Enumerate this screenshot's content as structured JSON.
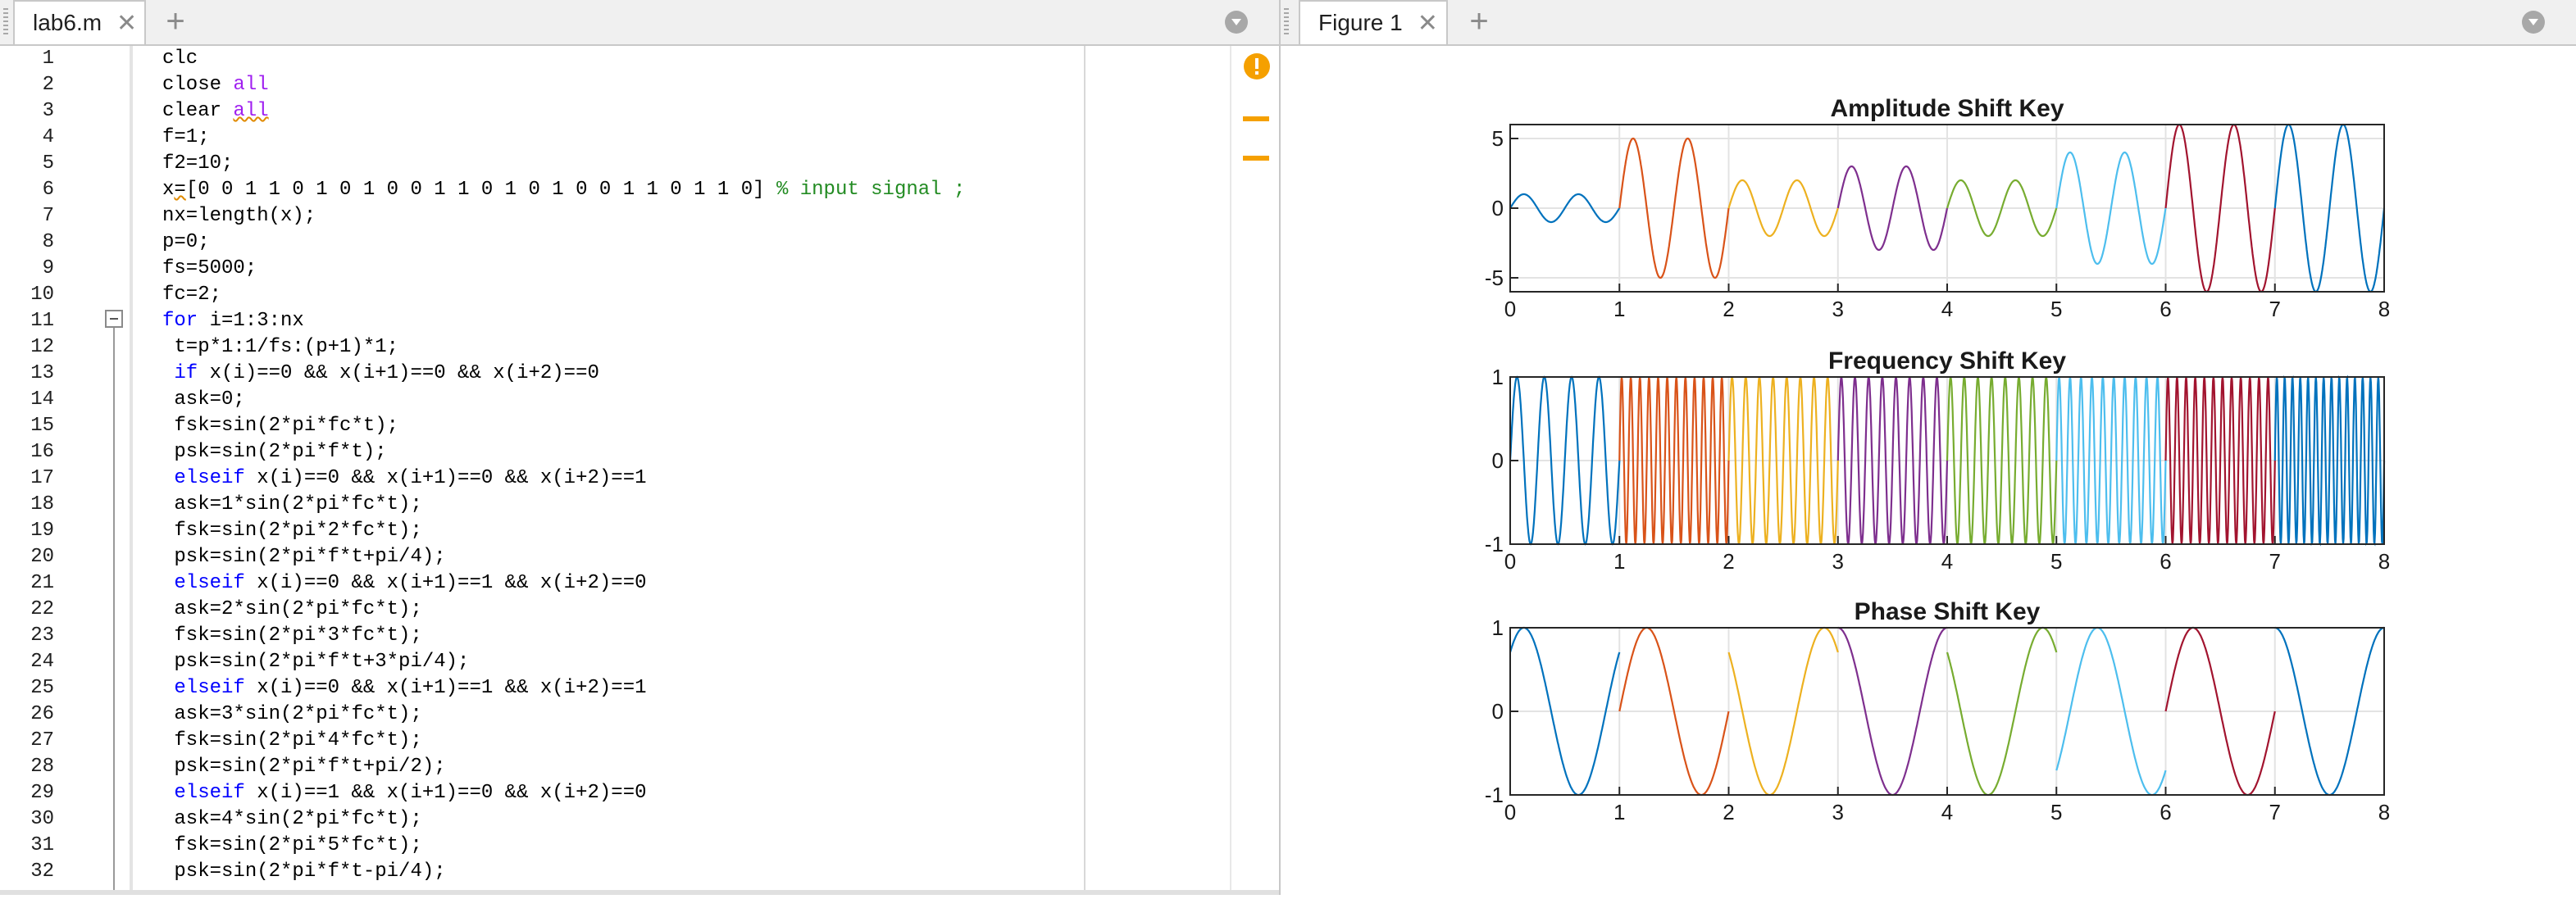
{
  "editor": {
    "tab_label": "lab6.m",
    "close_glyph": "✕",
    "add_glyph": "+",
    "lines": [
      {
        "n": "1",
        "segs": [
          {
            "t": "clc",
            "c": "txt"
          }
        ]
      },
      {
        "n": "2",
        "segs": [
          {
            "t": "close ",
            "c": "txt"
          },
          {
            "t": "all",
            "c": "str"
          }
        ]
      },
      {
        "n": "3",
        "segs": [
          {
            "t": "clear ",
            "c": "txt"
          },
          {
            "t": "all",
            "c": "str squig"
          }
        ]
      },
      {
        "n": "4",
        "segs": [
          {
            "t": "f=1;",
            "c": "txt"
          }
        ]
      },
      {
        "n": "5",
        "segs": [
          {
            "t": "f2=10;",
            "c": "txt"
          }
        ]
      },
      {
        "n": "6",
        "segs": [
          {
            "t": "x",
            "c": "txt"
          },
          {
            "t": "=",
            "c": "txt squig"
          },
          {
            "t": "[0 0 1 1 0 1 0 1 0 0 1 1 0 1 0 1 0 0 1 1 0 1 1 0] ",
            "c": "txt"
          },
          {
            "t": "% input signal ;",
            "c": "cmt"
          }
        ]
      },
      {
        "n": "7",
        "segs": [
          {
            "t": "nx=length(x);",
            "c": "txt"
          }
        ]
      },
      {
        "n": "8",
        "segs": [
          {
            "t": "p=0;",
            "c": "txt"
          }
        ]
      },
      {
        "n": "9",
        "segs": [
          {
            "t": "fs=5000;",
            "c": "txt"
          }
        ]
      },
      {
        "n": "10",
        "segs": [
          {
            "t": "fc=2;",
            "c": "txt"
          }
        ]
      },
      {
        "n": "11",
        "segs": [
          {
            "t": "for ",
            "c": "kw"
          },
          {
            "t": "i=1:3:nx",
            "c": "txt"
          }
        ]
      },
      {
        "n": "12",
        "segs": [
          {
            "t": " t=p*1:1/fs:(p+1)*1;",
            "c": "txt"
          }
        ]
      },
      {
        "n": "13",
        "segs": [
          {
            "t": " if ",
            "c": "kw"
          },
          {
            "t": "x(i)==0 && x(i+1)==0 && x(i+2)==0",
            "c": "txt"
          }
        ]
      },
      {
        "n": "14",
        "segs": [
          {
            "t": " ask=0;",
            "c": "txt"
          }
        ]
      },
      {
        "n": "15",
        "segs": [
          {
            "t": " fsk=sin(2*pi*fc*t);",
            "c": "txt"
          }
        ]
      },
      {
        "n": "16",
        "segs": [
          {
            "t": " psk=sin(2*pi*f*t);",
            "c": "txt"
          }
        ]
      },
      {
        "n": "17",
        "segs": [
          {
            "t": " elseif ",
            "c": "kw"
          },
          {
            "t": "x(i)==0 && x(i+1)==0 && x(i+2)==1",
            "c": "txt"
          }
        ]
      },
      {
        "n": "18",
        "segs": [
          {
            "t": " ask=1*sin(2*pi*fc*t);",
            "c": "txt"
          }
        ]
      },
      {
        "n": "19",
        "segs": [
          {
            "t": " fsk=sin(2*pi*2*fc*t);",
            "c": "txt"
          }
        ]
      },
      {
        "n": "20",
        "segs": [
          {
            "t": " psk=sin(2*pi*f*t+pi/4);",
            "c": "txt"
          }
        ]
      },
      {
        "n": "21",
        "segs": [
          {
            "t": " elseif ",
            "c": "kw"
          },
          {
            "t": "x(i)==0 && x(i+1)==1 && x(i+2)==0",
            "c": "txt"
          }
        ]
      },
      {
        "n": "22",
        "segs": [
          {
            "t": " ask=2*sin(2*pi*fc*t);",
            "c": "txt"
          }
        ]
      },
      {
        "n": "23",
        "segs": [
          {
            "t": " fsk=sin(2*pi*3*fc*t);",
            "c": "txt"
          }
        ]
      },
      {
        "n": "24",
        "segs": [
          {
            "t": " psk=sin(2*pi*f*t+3*pi/4);",
            "c": "txt"
          }
        ]
      },
      {
        "n": "25",
        "segs": [
          {
            "t": " elseif ",
            "c": "kw"
          },
          {
            "t": "x(i)==0 && x(i+1)==1 && x(i+2)==1",
            "c": "txt"
          }
        ]
      },
      {
        "n": "26",
        "segs": [
          {
            "t": " ask=3*sin(2*pi*fc*t);",
            "c": "txt"
          }
        ]
      },
      {
        "n": "27",
        "segs": [
          {
            "t": " fsk=sin(2*pi*4*fc*t);",
            "c": "txt"
          }
        ]
      },
      {
        "n": "28",
        "segs": [
          {
            "t": " psk=sin(2*pi*f*t+pi/2);",
            "c": "txt"
          }
        ]
      },
      {
        "n": "29",
        "segs": [
          {
            "t": " elseif ",
            "c": "kw"
          },
          {
            "t": "x(i)==1 && x(i+1)==0 && x(i+2)==0",
            "c": "txt"
          }
        ]
      },
      {
        "n": "30",
        "segs": [
          {
            "t": " ask=4*sin(2*pi*fc*t);",
            "c": "txt"
          }
        ]
      },
      {
        "n": "31",
        "segs": [
          {
            "t": " fsk=sin(2*pi*5*fc*t);",
            "c": "txt"
          }
        ]
      },
      {
        "n": "32",
        "segs": [
          {
            "t": " psk=sin(2*pi*f*t-pi/4);",
            "c": "txt"
          }
        ]
      }
    ],
    "colors": {
      "keyword": "#0000ff",
      "string": "#a020f0",
      "comment": "#228b22",
      "warning": "#f5a000"
    }
  },
  "figure": {
    "tab_label": "Figure 1",
    "close_glyph": "✕",
    "add_glyph": "+"
  },
  "chart_data": [
    {
      "type": "line",
      "title": "Amplitude Shift Key",
      "xlabel": "",
      "ylabel": "",
      "xlim": [
        0,
        8
      ],
      "ylim": [
        -6,
        6
      ],
      "xticks": [
        "0",
        "1",
        "2",
        "3",
        "4",
        "5",
        "6",
        "7",
        "8"
      ],
      "yticks": [
        "5",
        "0",
        "-5"
      ],
      "ytick_values": [
        5,
        0,
        -5
      ],
      "grid": true,
      "series": [
        {
          "x": [
            0,
            1
          ],
          "amp": 1,
          "freq": 2,
          "phase_deg": 0,
          "color": "#0072BD"
        },
        {
          "x": [
            1,
            2
          ],
          "amp": 5,
          "freq": 2,
          "phase_deg": 0,
          "color": "#D95319"
        },
        {
          "x": [
            2,
            3
          ],
          "amp": 2,
          "freq": 2,
          "phase_deg": 0,
          "color": "#EDB120"
        },
        {
          "x": [
            3,
            4
          ],
          "amp": 3,
          "freq": 2,
          "phase_deg": 0,
          "color": "#7E2F8E"
        },
        {
          "x": [
            4,
            5
          ],
          "amp": 2,
          "freq": 2,
          "phase_deg": 0,
          "color": "#77AC30"
        },
        {
          "x": [
            5,
            6
          ],
          "amp": 4,
          "freq": 2,
          "phase_deg": 0,
          "color": "#4DBEEE"
        },
        {
          "x": [
            6,
            7
          ],
          "amp": 6,
          "freq": 2,
          "phase_deg": 0,
          "color": "#A2142F"
        },
        {
          "x": [
            7,
            8
          ],
          "amp": 6,
          "freq": 2,
          "phase_deg": 0,
          "color": "#0072BD"
        }
      ]
    },
    {
      "type": "line",
      "title": "Frequency Shift Key",
      "xlabel": "",
      "ylabel": "",
      "xlim": [
        0,
        8
      ],
      "ylim": [
        -1,
        1
      ],
      "xticks": [
        "0",
        "1",
        "2",
        "3",
        "4",
        "5",
        "6",
        "7",
        "8"
      ],
      "yticks": [
        "1",
        "0",
        "-1"
      ],
      "ytick_values": [
        1,
        0,
        -1
      ],
      "grid": true,
      "series": [
        {
          "x": [
            0,
            1
          ],
          "amp": 1,
          "freq": 4,
          "phase_deg": 0,
          "color": "#0072BD"
        },
        {
          "x": [
            1,
            2
          ],
          "amp": 1,
          "freq": 12,
          "phase_deg": 0,
          "color": "#D95319"
        },
        {
          "x": [
            2,
            3
          ],
          "amp": 1,
          "freq": 8,
          "phase_deg": 0,
          "color": "#EDB120"
        },
        {
          "x": [
            3,
            4
          ],
          "amp": 1,
          "freq": 8,
          "phase_deg": 0,
          "color": "#7E2F8E"
        },
        {
          "x": [
            4,
            5
          ],
          "amp": 1,
          "freq": 8,
          "phase_deg": 0,
          "color": "#77AC30"
        },
        {
          "x": [
            5,
            6
          ],
          "amp": 1,
          "freq": 10,
          "phase_deg": 0,
          "color": "#4DBEEE"
        },
        {
          "x": [
            6,
            7
          ],
          "amp": 1,
          "freq": 12,
          "phase_deg": 0,
          "color": "#A2142F"
        },
        {
          "x": [
            7,
            8
          ],
          "amp": 1,
          "freq": 14,
          "phase_deg": 0,
          "color": "#0072BD"
        }
      ]
    },
    {
      "type": "line",
      "title": "Phase Shift Key",
      "xlabel": "",
      "ylabel": "",
      "xlim": [
        0,
        8
      ],
      "ylim": [
        -1,
        1
      ],
      "xticks": [
        "0",
        "1",
        "2",
        "3",
        "4",
        "5",
        "6",
        "7",
        "8"
      ],
      "yticks": [
        "1",
        "0",
        "-1"
      ],
      "ytick_values": [
        1,
        0,
        -1
      ],
      "grid": true,
      "series": [
        {
          "x": [
            0,
            1
          ],
          "amp": 1,
          "freq": 1,
          "phase_deg": 45,
          "color": "#0072BD"
        },
        {
          "x": [
            1,
            2
          ],
          "amp": 1,
          "freq": 1,
          "phase_deg": 0,
          "color": "#D95319"
        },
        {
          "x": [
            2,
            3
          ],
          "amp": 1,
          "freq": 1,
          "phase_deg": 135,
          "color": "#EDB120"
        },
        {
          "x": [
            3,
            4
          ],
          "amp": 1,
          "freq": 1,
          "phase_deg": 90,
          "color": "#7E2F8E"
        },
        {
          "x": [
            4,
            5
          ],
          "amp": 1,
          "freq": 1,
          "phase_deg": 135,
          "color": "#77AC30"
        },
        {
          "x": [
            5,
            6
          ],
          "amp": 1,
          "freq": 1,
          "phase_deg": -45,
          "color": "#4DBEEE"
        },
        {
          "x": [
            6,
            7
          ],
          "amp": 1,
          "freq": 1,
          "phase_deg": 0,
          "color": "#A2142F"
        },
        {
          "x": [
            7,
            8
          ],
          "amp": 1,
          "freq": 1,
          "phase_deg": 90,
          "color": "#0072BD"
        }
      ]
    }
  ]
}
